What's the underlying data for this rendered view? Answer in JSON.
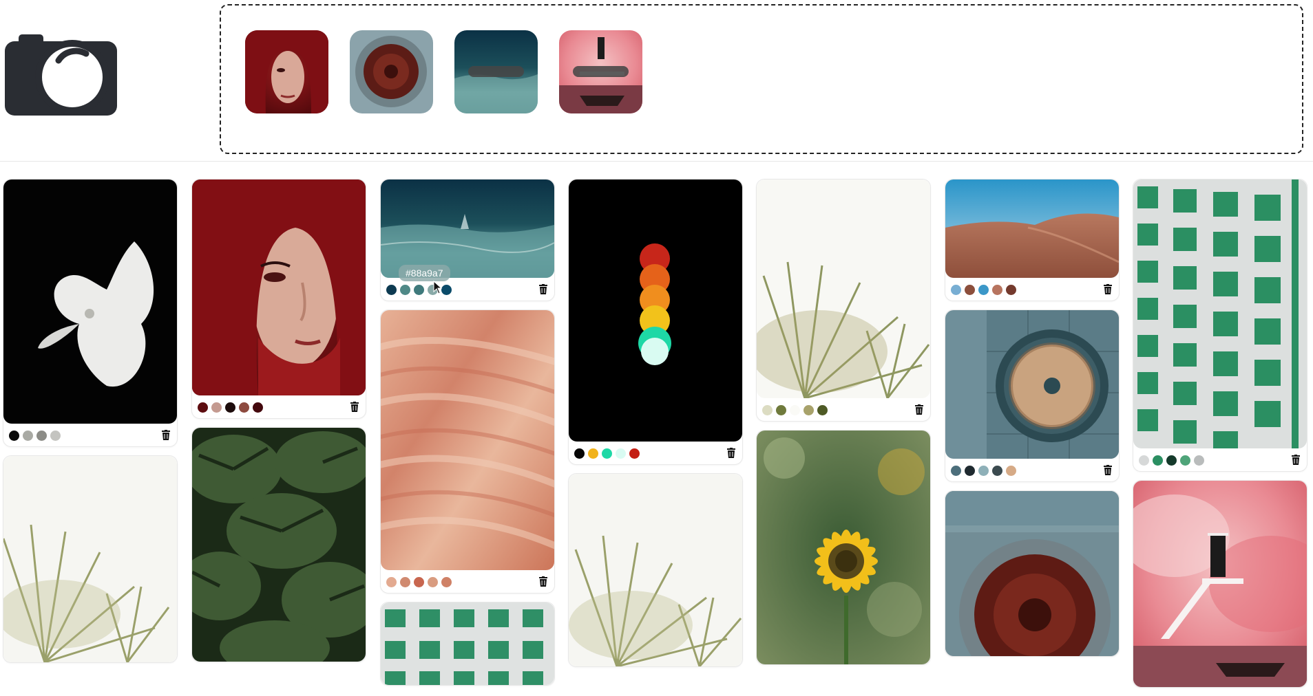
{
  "header": {
    "logo_icon": "camera-icon",
    "upload_queue": [
      {
        "name": "red-scarf-portrait",
        "status": "done"
      },
      {
        "name": "tart-plate",
        "status": "done"
      },
      {
        "name": "ocean-wave",
        "status": "uploading"
      },
      {
        "name": "pink-smoke-door",
        "status": "uploading"
      }
    ]
  },
  "tooltip": {
    "text": "#88a9a7"
  },
  "columns": [
    [
      {
        "name": "white-flower",
        "swatches": [
          "#0a0a0a",
          "#a9aaa4",
          "#8c8c87",
          "#c4c4c0"
        ]
      },
      {
        "name": "palm-fronds",
        "swatches": []
      }
    ],
    [
      {
        "name": "red-scarf-portrait",
        "swatches": [
          "#5d0d10",
          "#c49a90",
          "#1d0c0c",
          "#8d4a3f",
          "#43080d"
        ]
      },
      {
        "name": "monstera-leaves",
        "swatches": []
      }
    ],
    [
      {
        "name": "ocean-wave",
        "swatches": [
          "#0d3a51",
          "#4f8987",
          "#3f7a7c",
          "#88a9a7",
          "#0a4b6a"
        ],
        "hovered_swatch": 3
      },
      {
        "name": "peach-waves",
        "swatches": [
          "#e3aa90",
          "#d08a70",
          "#c8664f",
          "#d99c80",
          "#cf8166"
        ]
      },
      {
        "name": "green-windows",
        "swatches": []
      }
    ],
    [
      {
        "name": "traffic-light",
        "swatches": [
          "#060606",
          "#f1b21b",
          "#1ed8a6",
          "#d9fbf2",
          "#c41f14"
        ]
      },
      {
        "name": "palm-fronds",
        "swatches": []
      }
    ],
    [
      {
        "name": "palm-fronds",
        "swatches": [
          "#dcdcc2",
          "#6f7a3c",
          "#fafaf6",
          "#a8a26b",
          "#4e5a25"
        ]
      },
      {
        "name": "sunflower",
        "swatches": []
      }
    ],
    [
      {
        "name": "sand-dunes",
        "swatches": [
          "#78aed3",
          "#8c4f3c",
          "#3b97c8",
          "#b7745f",
          "#743a2d"
        ]
      },
      {
        "name": "poppy-bagel",
        "swatches": [
          "#4c6e7b",
          "#1f2a30",
          "#8eb0b8",
          "#3b4a4f",
          "#d6aa86"
        ]
      },
      {
        "name": "tart-plate",
        "swatches": []
      }
    ],
    [
      {
        "name": "green-windows",
        "swatches": [
          "#d6d8d8",
          "#2b8f62",
          "#153a2b",
          "#4fa479",
          "#b9bcbc"
        ]
      },
      {
        "name": "pink-smoke-door",
        "swatches": []
      }
    ]
  ]
}
